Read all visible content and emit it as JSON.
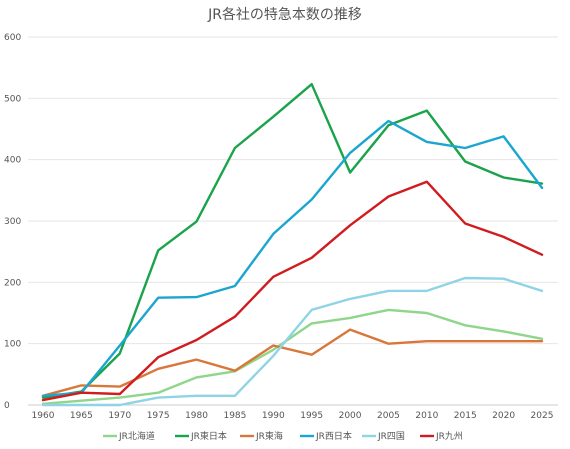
{
  "chart_data": {
    "type": "line",
    "title": "JR各社の特急本数の推移",
    "xlabel": "",
    "ylabel": "",
    "x": [
      1960,
      1965,
      1970,
      1975,
      1980,
      1985,
      1990,
      1995,
      2000,
      2005,
      2010,
      2015,
      2020,
      2025
    ],
    "x_tick_labels": [
      "1960",
      "1965",
      "1970",
      "1975",
      "1980",
      "1985",
      "1990",
      "1995",
      "2000",
      "2005",
      "2010",
      "2015",
      "2020",
      "2025"
    ],
    "ylim": [
      0,
      600
    ],
    "y_ticks": [
      0,
      100,
      200,
      300,
      400,
      500,
      600
    ],
    "y_tick_labels": [
      "0",
      "100",
      "200",
      "300",
      "400",
      "500",
      "600"
    ],
    "grid": true,
    "legend_position": "bottom",
    "series": [
      {
        "name": "JR北海道",
        "color": "#8fd68a",
        "values": [
          2,
          7,
          12,
          20,
          45,
          55,
          90,
          133,
          142,
          155,
          150,
          130,
          120,
          108
        ]
      },
      {
        "name": "JR東日本",
        "color": "#1aa34a",
        "values": [
          12,
          22,
          84,
          252,
          299,
          419,
          470,
          523,
          379,
          456,
          480,
          397,
          371,
          361
        ]
      },
      {
        "name": "JR東海",
        "color": "#d9773a",
        "values": [
          15,
          32,
          30,
          59,
          74,
          56,
          97,
          82,
          123,
          100,
          104,
          104,
          104,
          104
        ]
      },
      {
        "name": "JR西日本",
        "color": "#1ba6cf",
        "values": [
          15,
          20,
          97,
          175,
          176,
          194,
          279,
          335,
          411,
          463,
          429,
          419,
          438,
          354
        ]
      },
      {
        "name": "JR四国",
        "color": "#8fd4e6",
        "values": [
          0,
          0,
          0,
          12,
          15,
          15,
          80,
          155,
          173,
          186,
          186,
          207,
          206,
          186
        ]
      },
      {
        "name": "JR九州",
        "color": "#d01c1f",
        "values": [
          8,
          20,
          18,
          78,
          106,
          144,
          209,
          240,
          293,
          340,
          364,
          296,
          274,
          245
        ]
      }
    ]
  }
}
